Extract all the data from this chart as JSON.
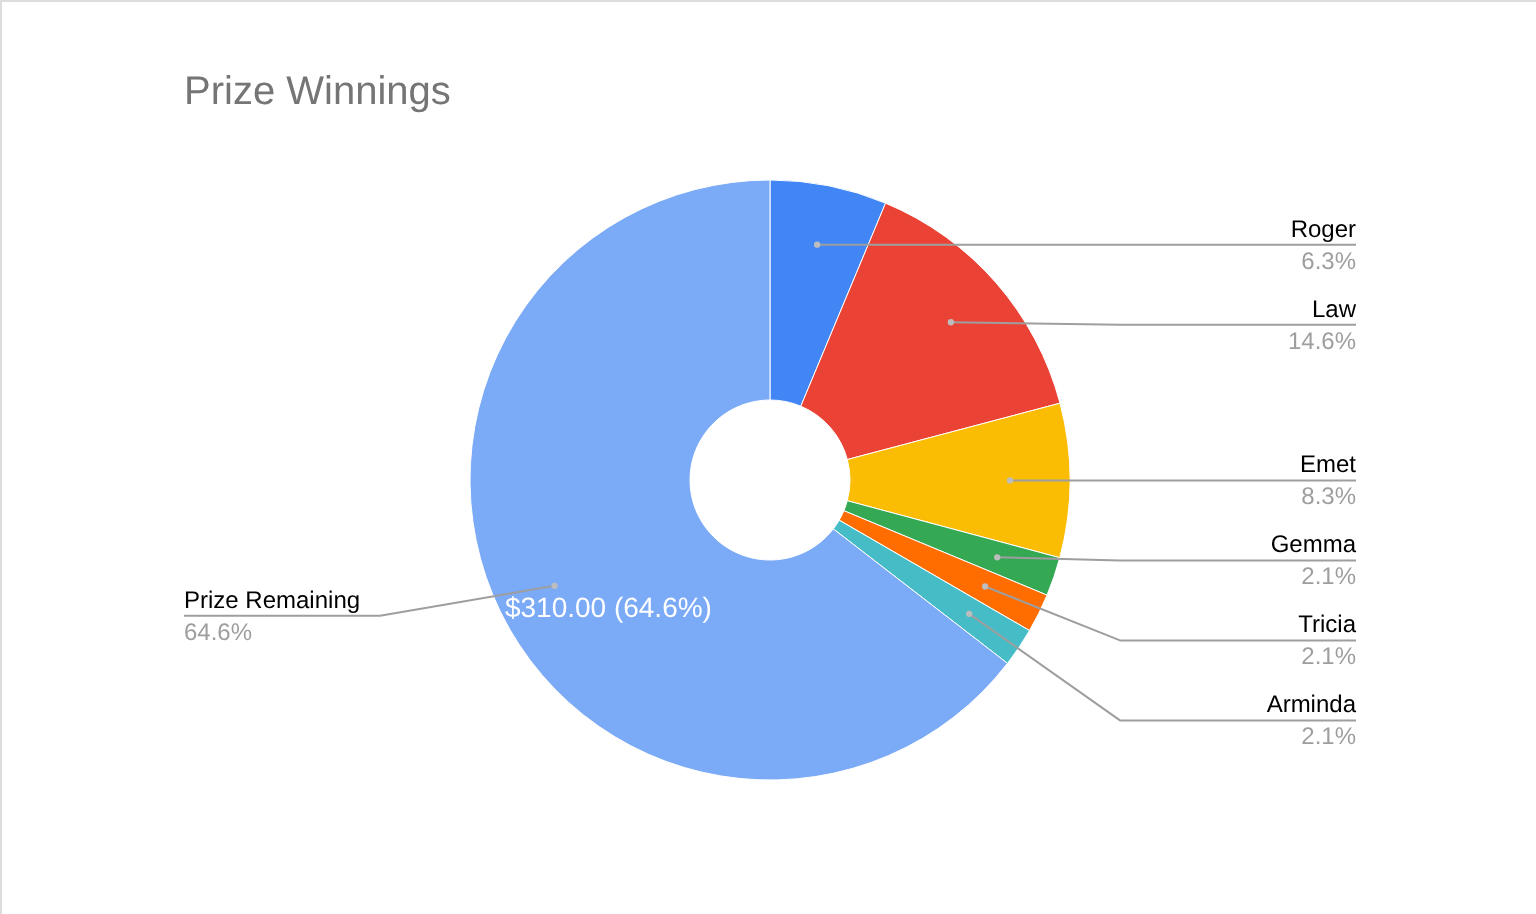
{
  "chart_data": {
    "type": "donut",
    "title": "Prize Winnings",
    "categories": [
      "Roger",
      "Law",
      "Emet",
      "Gemma",
      "Tricia",
      "Arminda",
      "Prize Remaining"
    ],
    "values": [
      6.3,
      14.6,
      8.3,
      2.1,
      2.1,
      2.1,
      64.6
    ],
    "value_labels": [
      "6.3%",
      "14.6%",
      "8.3%",
      "2.1%",
      "2.1%",
      "2.1%",
      "64.6%"
    ],
    "colors": [
      "#4285f4",
      "#ea4335",
      "#fbbc04",
      "#34a853",
      "#ff6d01",
      "#46bdc6",
      "#7baaf7"
    ],
    "annotations": [
      {
        "text": "$310.00 (64.6%)",
        "x": "Prize Remaining"
      }
    ],
    "legend": false
  }
}
